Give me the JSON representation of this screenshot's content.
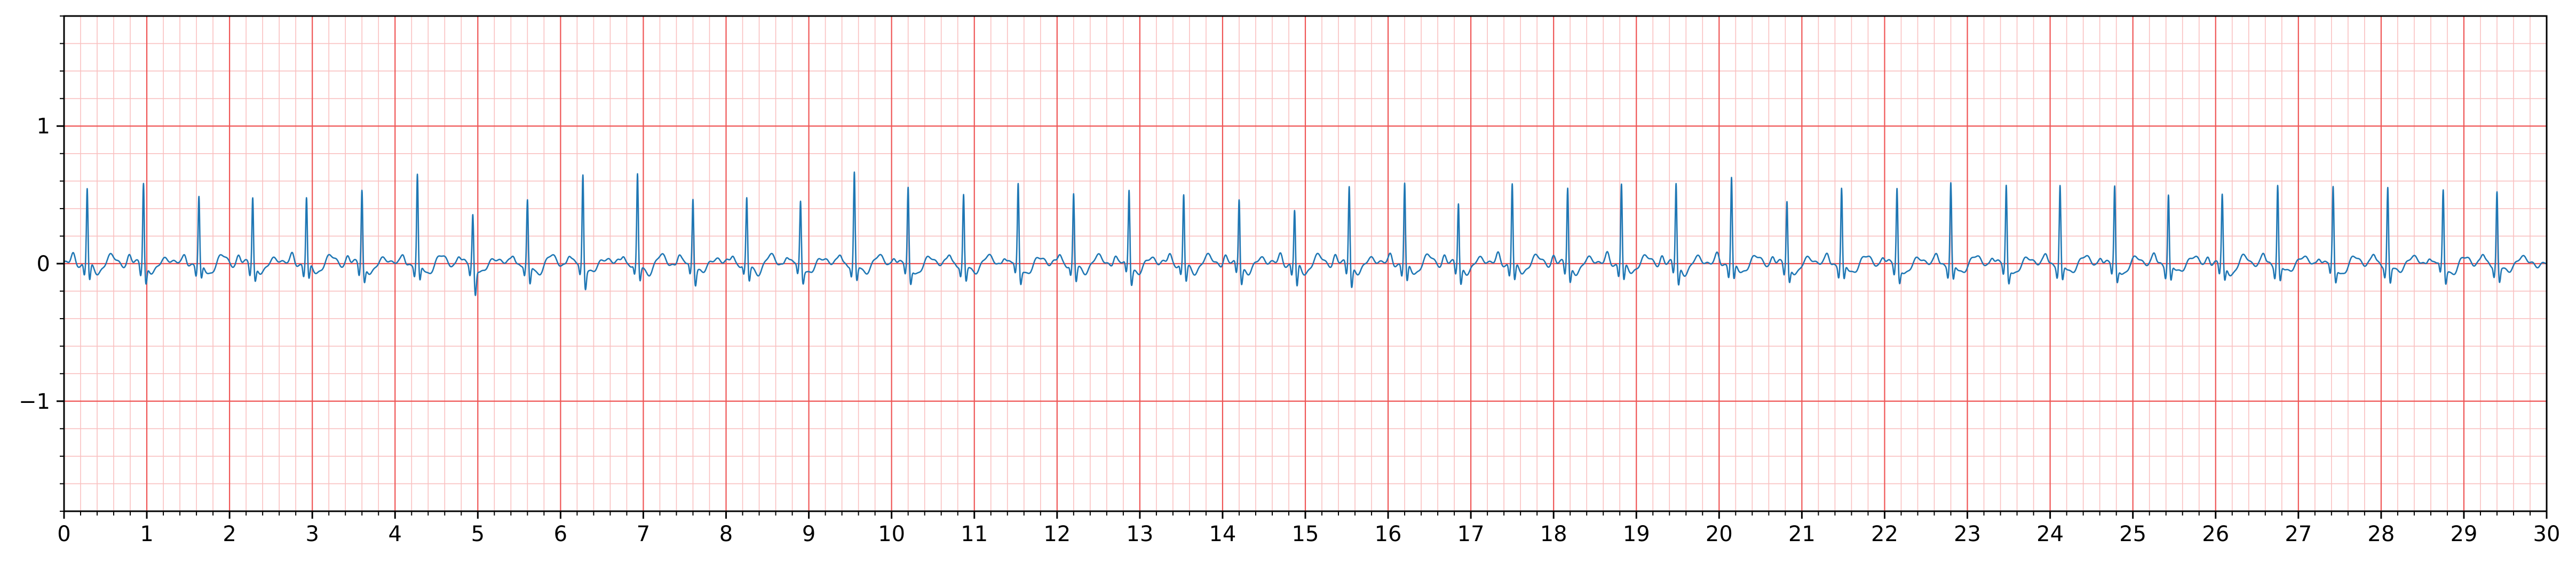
{
  "chart_data": {
    "type": "line",
    "title": "",
    "xlabel": "",
    "ylabel": "",
    "xlim": [
      0,
      30
    ],
    "ylim": [
      -1.8,
      1.8
    ],
    "grid": "on (ECG paper: major every 1 s and 1 mV, minor every 0.2)",
    "grid_major_color": "#ef5555",
    "grid_minor_color": "#f9c0c0",
    "line_color": "#1f77b4",
    "x_ticks": [
      "0",
      "1",
      "2",
      "3",
      "4",
      "5",
      "6",
      "7",
      "8",
      "9",
      "10",
      "11",
      "12",
      "13",
      "14",
      "15",
      "16",
      "17",
      "18",
      "19",
      "20",
      "21",
      "22",
      "23",
      "24",
      "25",
      "26",
      "27",
      "28",
      "29",
      "30"
    ],
    "y_ticks": [
      "−1",
      "0",
      "1"
    ],
    "y_tick_values": [
      -1,
      0,
      1
    ],
    "series": [
      {
        "baseline": 0.0,
        "beat_times": [
          0.28,
          0.96,
          1.63,
          2.28,
          2.93,
          3.6,
          4.27,
          4.94,
          5.6,
          6.27,
          6.93,
          7.6,
          8.25,
          8.9,
          9.55,
          10.2,
          10.87,
          11.53,
          12.2,
          12.87,
          13.53,
          14.2,
          14.87,
          15.53,
          16.2,
          16.85,
          17.5,
          18.17,
          18.82,
          19.48,
          20.15,
          20.82,
          21.48,
          22.15,
          22.8,
          23.47,
          24.12,
          24.78,
          25.43,
          26.08,
          26.75,
          27.42,
          28.08,
          28.75,
          29.4
        ],
        "r_peak_values": [
          0.56,
          0.61,
          0.48,
          0.5,
          0.49,
          0.55,
          0.64,
          0.37,
          0.45,
          0.66,
          0.64,
          0.49,
          0.47,
          0.46,
          0.66,
          0.55,
          0.5,
          0.58,
          0.51,
          0.55,
          0.51,
          0.49,
          0.4,
          0.59,
          0.59,
          0.46,
          0.6,
          0.57,
          0.6,
          0.6,
          0.64,
          0.46,
          0.55,
          0.55,
          0.59,
          0.57,
          0.57,
          0.56,
          0.51,
          0.5,
          0.58,
          0.55,
          0.56,
          0.53,
          0.53
        ],
        "s_wave_values": [
          -0.12,
          -0.13,
          -0.12,
          -0.11,
          -0.12,
          -0.12,
          -0.13,
          -0.2,
          -0.15,
          -0.15,
          -0.12,
          -0.12,
          -0.12,
          -0.11,
          -0.12,
          -0.13,
          -0.12,
          -0.12,
          -0.12,
          -0.12,
          -0.12,
          -0.12,
          -0.17,
          -0.15,
          -0.14,
          -0.13,
          -0.12,
          -0.12,
          -0.12,
          -0.14,
          -0.12,
          -0.12,
          -0.12,
          -0.12,
          -0.12,
          -0.12,
          -0.12,
          -0.12,
          -0.12,
          -0.12,
          -0.12,
          -0.12,
          -0.13,
          -0.12,
          -0.12
        ]
      }
    ]
  }
}
